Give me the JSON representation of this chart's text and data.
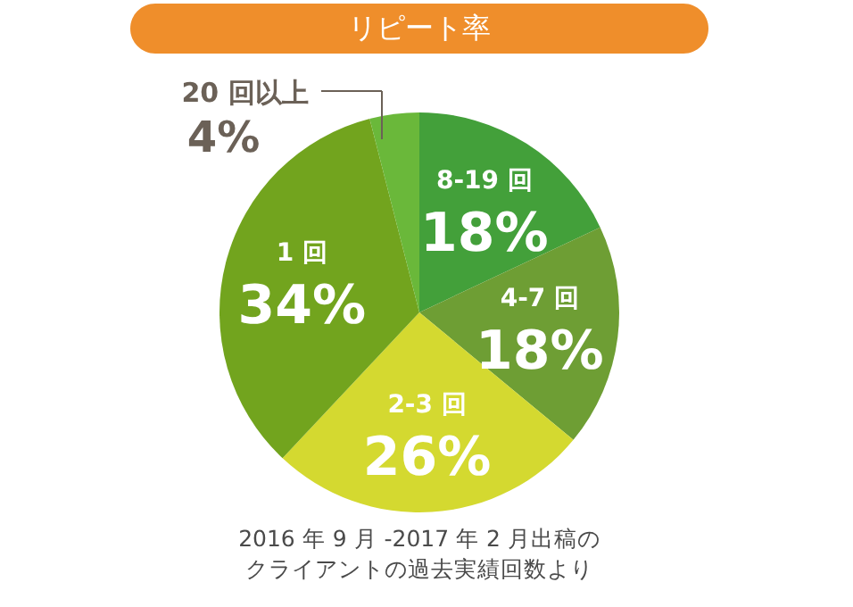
{
  "chart_data": {
    "type": "pie",
    "title": "リピート率",
    "categories": [
      "8-19 回",
      "4-7 回",
      "2-3 回",
      "1 回",
      "20 回以上"
    ],
    "values": [
      18,
      18,
      26,
      34,
      4
    ],
    "colors": [
      "#43a03a",
      "#6e9e34",
      "#d4d930",
      "#72a41e",
      "#6ab83a"
    ],
    "value_labels": [
      "18%",
      "18%",
      "26%",
      "34%",
      "4%"
    ],
    "annotations": [
      "2016 年 9 月 -2017 年 2 月出稿の",
      "クライアントの過去実績回数より"
    ]
  }
}
